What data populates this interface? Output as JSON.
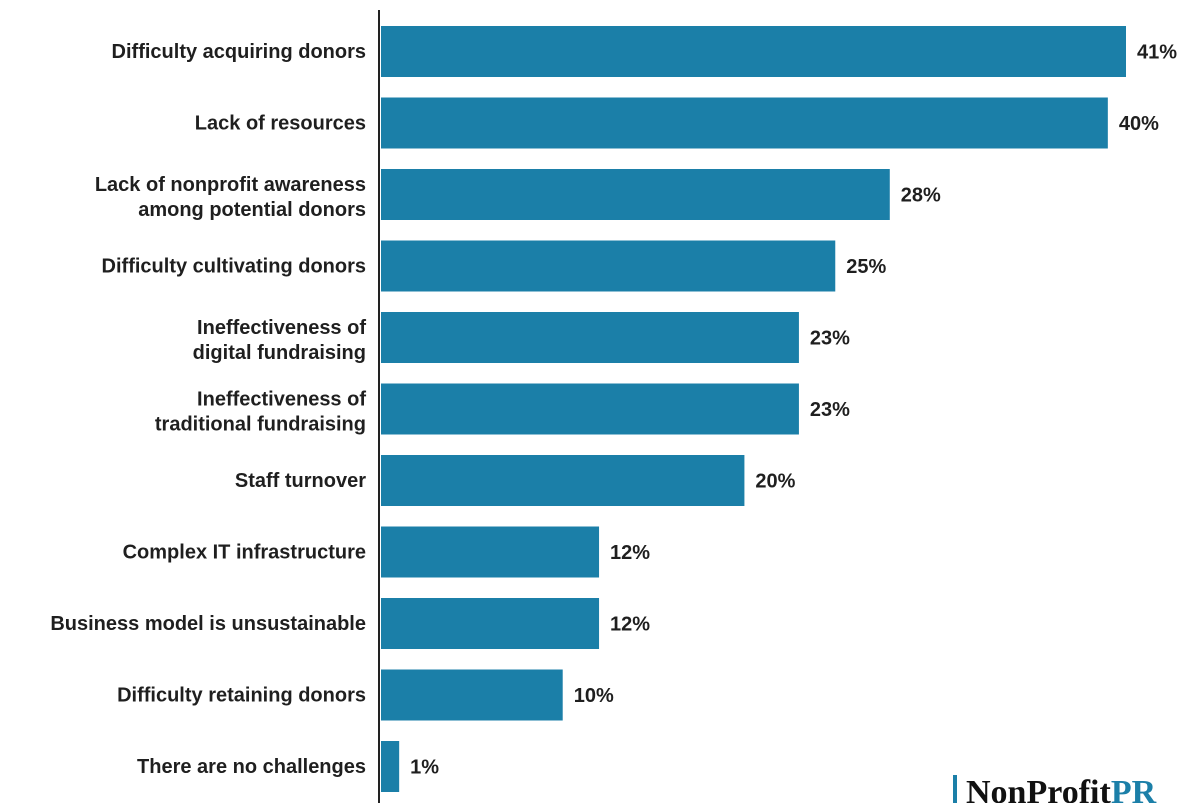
{
  "chart_data": {
    "type": "bar",
    "orientation": "horizontal",
    "categories": [
      [
        "Difficulty acquiring donors"
      ],
      [
        "Lack of resources"
      ],
      [
        "Lack of nonprofit awareness",
        "among potential donors"
      ],
      [
        "Difficulty cultivating donors"
      ],
      [
        "Ineffectiveness of",
        "digital fundraising"
      ],
      [
        "Ineffectiveness of",
        "traditional fundraising"
      ],
      [
        "Staff turnover"
      ],
      [
        "Complex IT infrastructure"
      ],
      [
        "Business model is unsustainable"
      ],
      [
        "Difficulty retaining donors"
      ],
      [
        "There are no challenges"
      ]
    ],
    "values": [
      41,
      40,
      28,
      25,
      23,
      23,
      20,
      12,
      12,
      10,
      1
    ],
    "value_labels": [
      "41%",
      "40%",
      "28%",
      "25%",
      "23%",
      "23%",
      "20%",
      "12%",
      "12%",
      "10%",
      "1%"
    ],
    "xlim": [
      0,
      41
    ],
    "grid": false,
    "bar_color": "#1b7fa8"
  },
  "logo": {
    "text": "NonProfit",
    "accent_text": "PR",
    "bar_color": "#1b7fa8",
    "accent_color": "#1b7fa8"
  }
}
